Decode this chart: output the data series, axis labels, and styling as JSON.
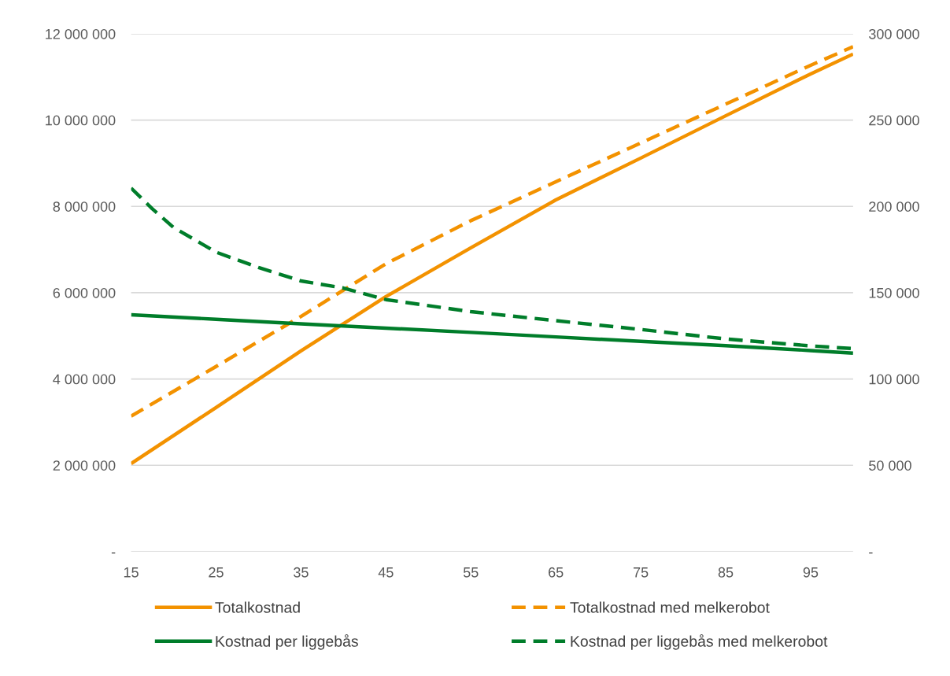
{
  "chart_data": {
    "type": "line",
    "x": [
      15,
      25,
      35,
      45,
      55,
      65,
      75,
      85,
      95,
      100
    ],
    "xlim": [
      15,
      100
    ],
    "xticks": [
      15,
      25,
      35,
      45,
      55,
      65,
      75,
      85,
      95
    ],
    "ylim": [
      0,
      12000000
    ],
    "yticks": [
      {
        "value": 0,
        "label": "-"
      },
      {
        "value": 2000000,
        "label": "2 000 000"
      },
      {
        "value": 4000000,
        "label": "4 000 000"
      },
      {
        "value": 6000000,
        "label": "6 000 000"
      },
      {
        "value": 8000000,
        "label": "8 000 000"
      },
      {
        "value": 10000000,
        "label": "10 000 000"
      },
      {
        "value": 12000000,
        "label": "12 000 000"
      }
    ],
    "y2lim": [
      0,
      300000
    ],
    "y2ticks": [
      {
        "value": 0,
        "label": "-"
      },
      {
        "value": 50000,
        "label": "50 000"
      },
      {
        "value": 100000,
        "label": "100 000"
      },
      {
        "value": 150000,
        "label": "150 000"
      },
      {
        "value": 200000,
        "label": "200 000"
      },
      {
        "value": 250000,
        "label": "250 000"
      },
      {
        "value": 300000,
        "label": "300 000"
      }
    ],
    "grid": "y",
    "legend": "bottom",
    "series": [
      {
        "name": "Totalkostnad",
        "color": "#f39200",
        "line_style": "solid",
        "values": [
          2040000,
          3340000,
          4650000,
          5910000,
          7040000,
          8150000,
          9120000,
          10100000,
          11070000,
          11530000
        ]
      },
      {
        "name": "Totalkostnad med melkerobot",
        "color": "#f39200",
        "line_style": "dashed",
        "values": [
          3140000,
          4290000,
          5450000,
          6670000,
          7670000,
          8570000,
          9470000,
          10370000,
          11270000,
          11700000
        ]
      },
      {
        "name": "Kostnad per liggebås",
        "color": "#007d2a",
        "line_style": "solid",
        "axis": "y2",
        "values": [
          137200,
          134600,
          132000,
          129500,
          127000,
          124400,
          121800,
          119300,
          116500,
          115000
        ]
      },
      {
        "name": "Kostnad per liggebås med melkerobot",
        "color": "#007d2a",
        "line_style": "dashed",
        "axis": "y2",
        "x": [
          15,
          17.5,
          20,
          25,
          30,
          35,
          40,
          45,
          55,
          65,
          75,
          85,
          95,
          100
        ],
        "values": [
          210600,
          198600,
          187800,
          173500,
          164600,
          156800,
          152700,
          146000,
          139000,
          133800,
          128700,
          123200,
          119200,
          117600
        ]
      }
    ]
  }
}
